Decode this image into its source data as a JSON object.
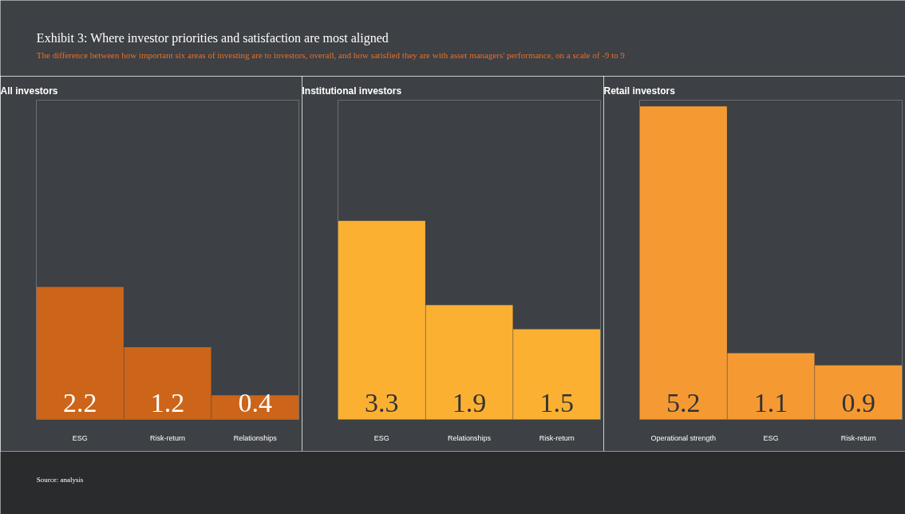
{
  "chart_data": [
    {
      "type": "bar",
      "title": "All investors",
      "categories": [
        "ESG",
        "Risk-return",
        "Relationships"
      ],
      "values": [
        2.2,
        1.2,
        0.4
      ],
      "color": "#cc6519",
      "data_labels": true,
      "tick_labels": "x",
      "annotations": [
        "Exhibit 3: Where investor priorities and satisfaction are most aligned",
        "The difference between how important six areas of investing are to investors, overall, and how satisfied they are with asset managers' performance, on a scale of -9 to 9"
      ]
    },
    {
      "type": "bar",
      "title": "Institutional investors",
      "categories": [
        "ESG",
        "Relationships",
        "Risk-return"
      ],
      "values": [
        3.3,
        1.9,
        1.5
      ],
      "color": "#fbb032",
      "data_labels": true,
      "tick_labels": "x"
    },
    {
      "type": "bar",
      "title": "Retail investors",
      "categories": [
        "Operational strength",
        "ESG",
        "Risk-return"
      ],
      "values": [
        5.2,
        1.1,
        0.9
      ],
      "color": "#f59a33",
      "data_labels": true,
      "tick_labels": "x",
      "annotations": [
        "Source: analysis"
      ]
    }
  ]
}
